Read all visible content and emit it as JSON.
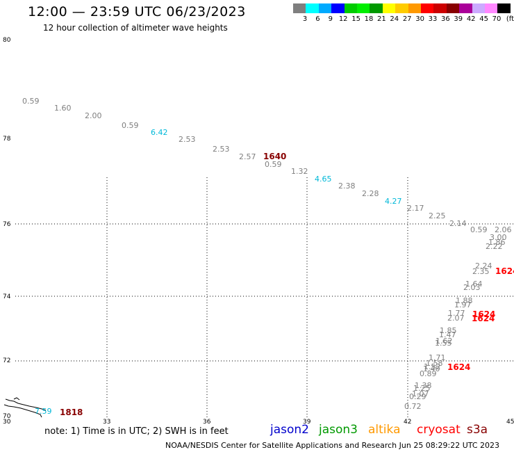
{
  "title": "12:00 — 23:59 UTC 06/23/2023",
  "subtitle": "12 hour collection of altimeter wave heights",
  "colorbar": {
    "unit": "(ft)",
    "labels": [
      "3",
      "6",
      "9",
      "12",
      "15",
      "18",
      "21",
      "24",
      "27",
      "30",
      "33",
      "36",
      "39",
      "42",
      "45",
      "70"
    ],
    "colors": [
      "#7f7f7f",
      "#00ffff",
      "#00aaff",
      "#0000ff",
      "#00cc00",
      "#00ee00",
      "#009900",
      "#ffff00",
      "#ffcc00",
      "#ff9900",
      "#ff0000",
      "#cc0000",
      "#880000",
      "#aa0099",
      "#ccaaff",
      "#ff88ff",
      "#000000"
    ]
  },
  "axes": {
    "lat_labels": [
      "80",
      "78",
      "76",
      "74",
      "72",
      "70"
    ],
    "lon_labels": [
      "30",
      "33",
      "36",
      "39",
      "42",
      "45"
    ]
  },
  "wave_heights": [
    {
      "text": "0.59",
      "color": "#7f7f7f"
    },
    {
      "text": "1.60",
      "color": "#7f7f7f"
    },
    {
      "text": "2.00",
      "color": "#7f7f7f"
    },
    {
      "text": "0.59",
      "color": "#7f7f7f"
    },
    {
      "text": "6.42",
      "color": "#00b8d8"
    },
    {
      "text": "2.53",
      "color": "#7f7f7f"
    },
    {
      "text": "2.53",
      "color": "#7f7f7f"
    },
    {
      "text": "2.57",
      "color": "#7f7f7f"
    },
    {
      "text": "0.59",
      "color": "#7f7f7f"
    },
    {
      "text": "1.32",
      "color": "#7f7f7f"
    },
    {
      "text": "4.65",
      "color": "#00b8d8"
    },
    {
      "text": "2.38",
      "color": "#7f7f7f"
    },
    {
      "text": "2.28",
      "color": "#7f7f7f"
    },
    {
      "text": "4.27",
      "color": "#00b8d8"
    },
    {
      "text": "2.17",
      "color": "#7f7f7f"
    },
    {
      "text": "2.25",
      "color": "#7f7f7f"
    },
    {
      "text": "2.14",
      "color": "#7f7f7f"
    },
    {
      "text": "0.59",
      "color": "#7f7f7f"
    },
    {
      "text": "2.06",
      "color": "#7f7f7f"
    },
    {
      "text": "3.00",
      "color": "#7f7f7f"
    },
    {
      "text": "1.86",
      "color": "#7f7f7f"
    },
    {
      "text": "2.22",
      "color": "#7f7f7f"
    },
    {
      "text": "2.24",
      "color": "#7f7f7f"
    },
    {
      "text": "2.35",
      "color": "#7f7f7f"
    },
    {
      "text": "1.64",
      "color": "#7f7f7f"
    },
    {
      "text": "2.03",
      "color": "#7f7f7f"
    },
    {
      "text": "1.88",
      "color": "#7f7f7f"
    },
    {
      "text": "1.97",
      "color": "#7f7f7f"
    },
    {
      "text": "1.77",
      "color": "#7f7f7f"
    },
    {
      "text": "2.07",
      "color": "#7f7f7f"
    },
    {
      "text": "1.85",
      "color": "#7f7f7f"
    },
    {
      "text": "1.47",
      "color": "#7f7f7f"
    },
    {
      "text": "1.62",
      "color": "#7f7f7f"
    },
    {
      "text": "1.55",
      "color": "#7f7f7f"
    },
    {
      "text": "1.71",
      "color": "#7f7f7f"
    },
    {
      "text": "1.58",
      "color": "#7f7f7f"
    },
    {
      "text": "1.52",
      "color": "#7f7f7f"
    },
    {
      "text": "1.40",
      "color": "#7f7f7f"
    },
    {
      "text": "0.89",
      "color": "#7f7f7f"
    },
    {
      "text": "1.38",
      "color": "#7f7f7f"
    },
    {
      "text": "1.25",
      "color": "#7f7f7f"
    },
    {
      "text": "1.07",
      "color": "#7f7f7f"
    },
    {
      "text": "0.29",
      "color": "#7f7f7f"
    },
    {
      "text": "0.72",
      "color": "#7f7f7f"
    },
    {
      "text": "7.59",
      "color": "#00b8d8"
    }
  ],
  "time_labels": [
    {
      "text": "1640",
      "color": "#880000"
    },
    {
      "text": "1624",
      "color": "#ff0000"
    },
    {
      "text": "1624",
      "color": "#ff0000"
    },
    {
      "text": "1624",
      "color": "#ff0000"
    },
    {
      "text": "1624",
      "color": "#ff0000"
    },
    {
      "text": "1818",
      "color": "#880000"
    }
  ],
  "note": "note: 1) Time is in UTC; 2) SWH is in feet",
  "satellites": [
    {
      "name": "jason2",
      "color": "#0000cc"
    },
    {
      "name": "jason3",
      "color": "#009900"
    },
    {
      "name": "altika",
      "color": "#ff9900"
    },
    {
      "name": "cryosat",
      "color": "#ff0000"
    },
    {
      "name": "s3a",
      "color": "#880000"
    }
  ],
  "credit": "NOAA/NESDIS Center for Satellite Applications and Research    Jun 25 08:29:22 UTC 2023"
}
